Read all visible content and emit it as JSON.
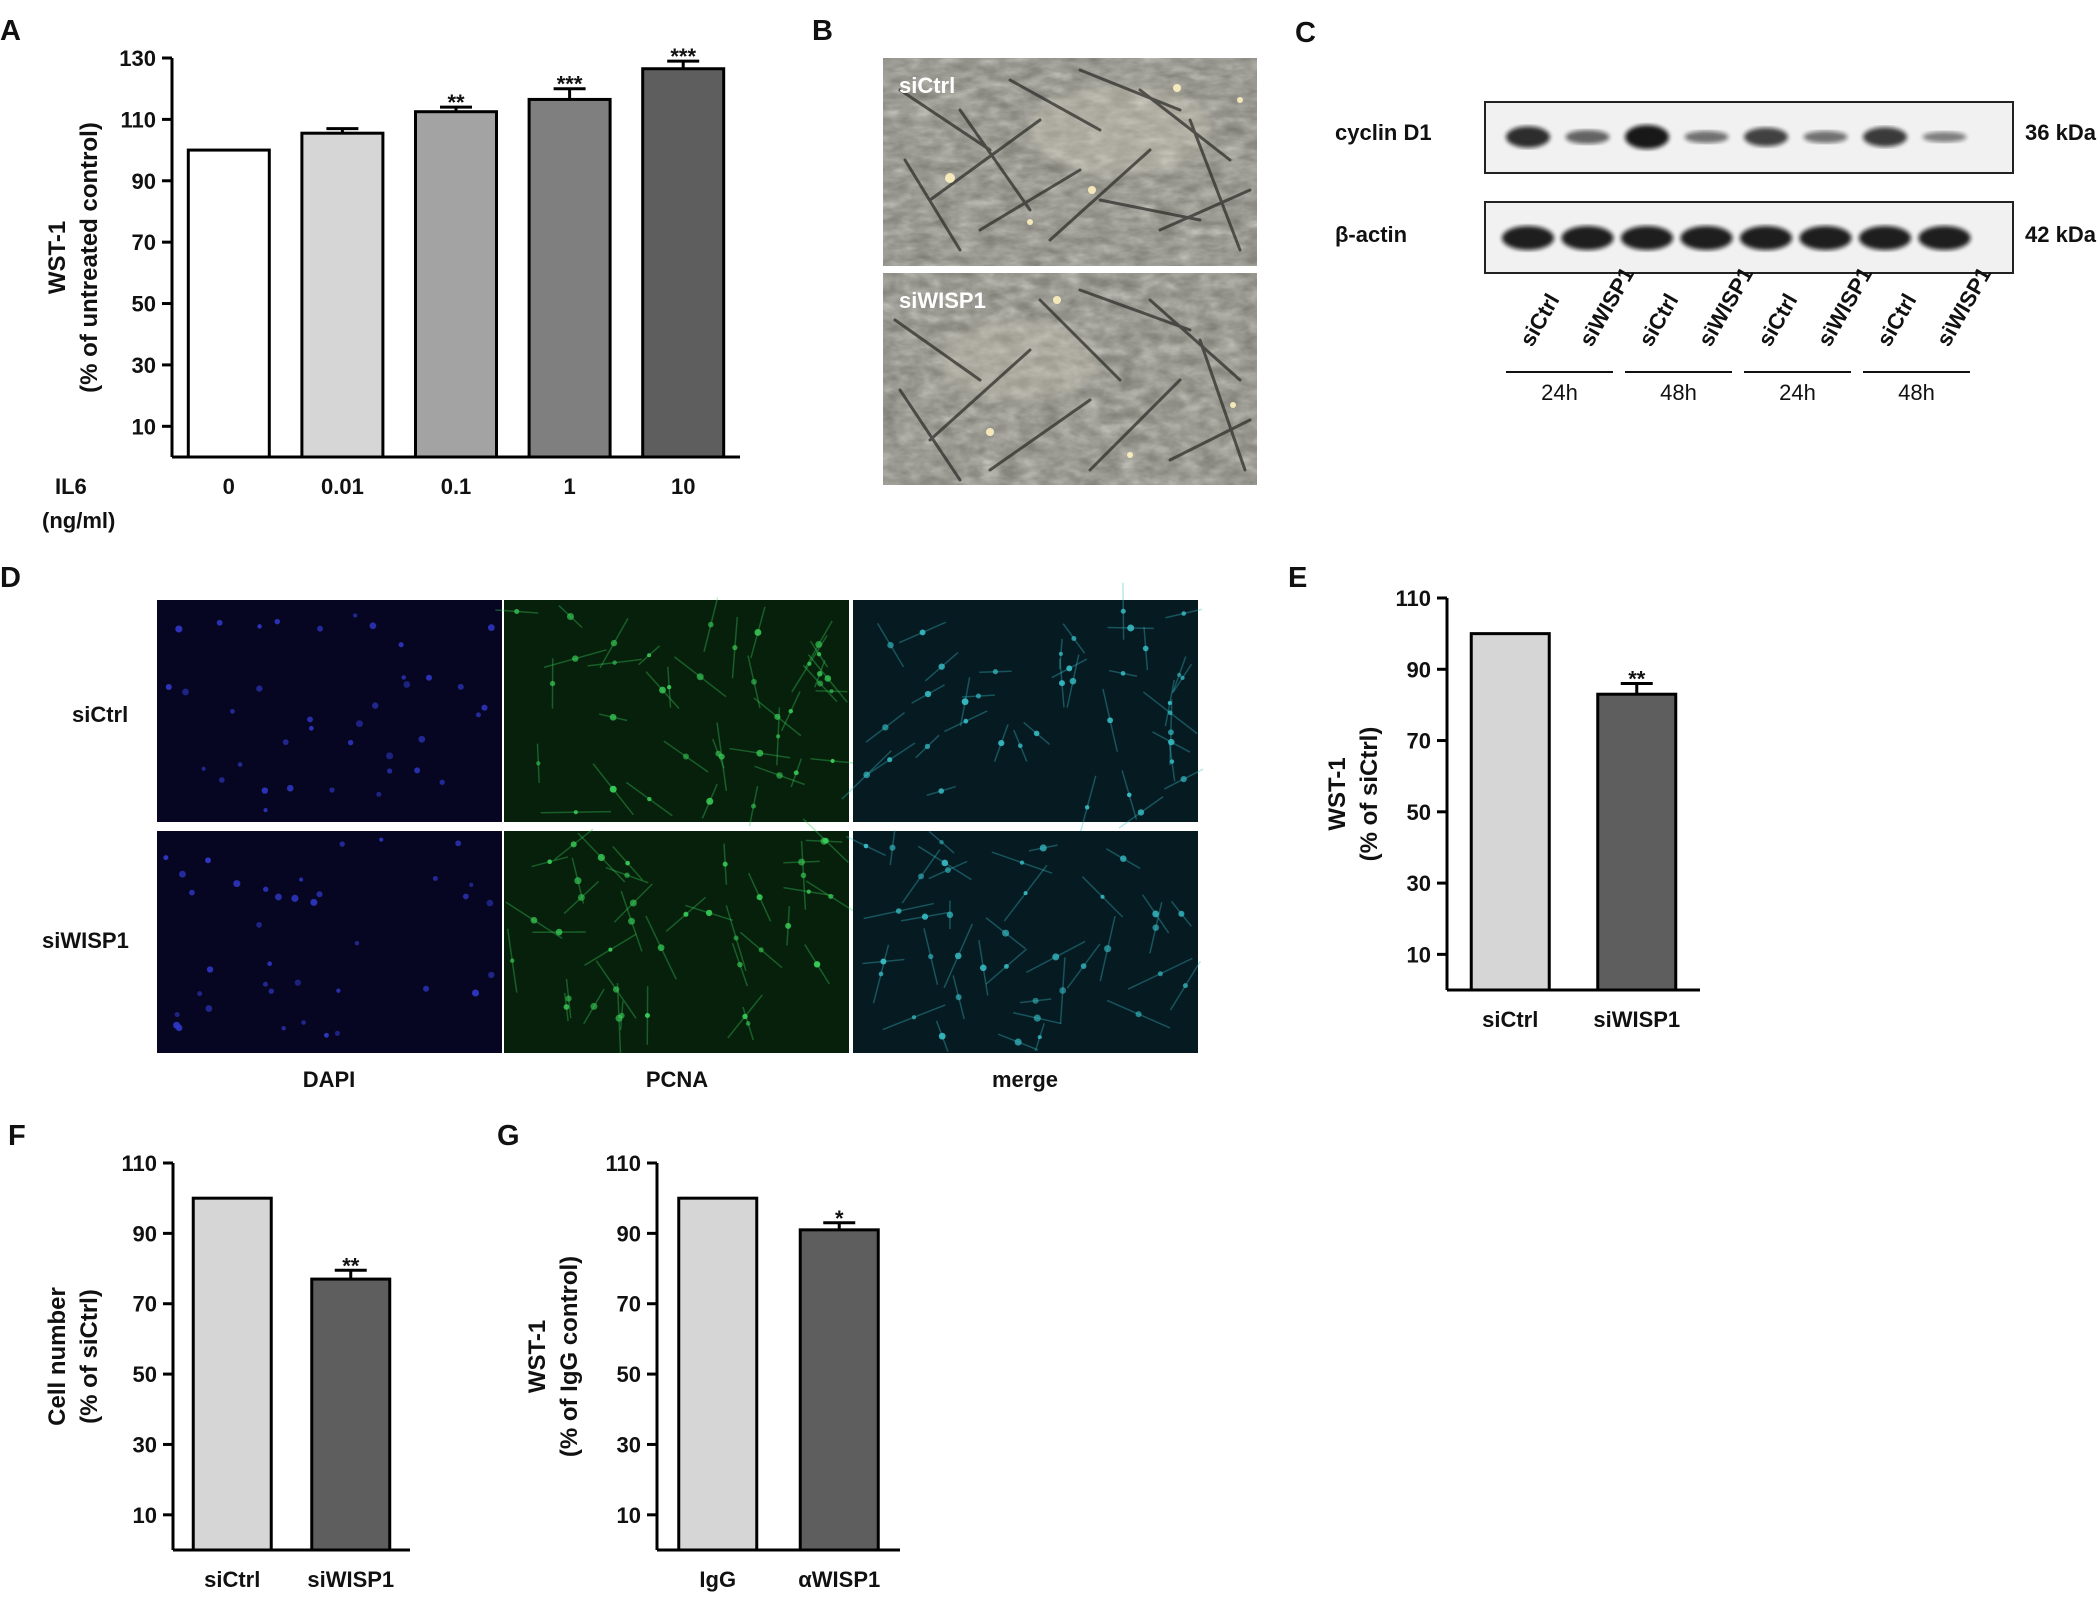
{
  "panels": {
    "A": {
      "letter": "A"
    },
    "B": {
      "letter": "B",
      "top_label": "siCtrl",
      "bottom_label": "siWISP1"
    },
    "C": {
      "letter": "C",
      "rows": [
        {
          "name": "cyclin D1",
          "size": "36 kDa"
        },
        {
          "name": "β-actin",
          "size": "42 kDa"
        }
      ],
      "lanes": [
        "siCtrl",
        "siWISP1",
        "siCtrl",
        "siWISP1",
        "siCtrl",
        "siWISP1",
        "siCtrl",
        "siWISP1"
      ],
      "times": [
        "24h",
        "48h",
        "24h",
        "48h"
      ]
    },
    "D": {
      "letter": "D",
      "row_labels": [
        "siCtrl",
        "siWISP1"
      ],
      "col_labels": [
        "DAPI",
        "PCNA",
        "merge"
      ]
    },
    "E": {
      "letter": "E"
    },
    "F": {
      "letter": "F"
    },
    "G": {
      "letter": "G"
    }
  },
  "chart_data": [
    {
      "id": "A",
      "type": "bar",
      "ylabel_line1": "WST-1",
      "ylabel_line2": "(% of untreated control)",
      "xlabel_line1": "IL6",
      "xlabel_line2": "(ng/ml)",
      "categories": [
        "0",
        "0.01",
        "0.1",
        "1",
        "10"
      ],
      "values": [
        100,
        105.5,
        112.5,
        116.5,
        126.5
      ],
      "errors": [
        0,
        1.5,
        1.5,
        3.5,
        2.5
      ],
      "significance": [
        "",
        "",
        "**",
        "***",
        "***"
      ],
      "colors": [
        "#ffffff",
        "#d6d6d6",
        "#a3a3a3",
        "#7f7f7f",
        "#5e5e5e"
      ],
      "yticks": [
        10,
        30,
        50,
        70,
        90,
        110,
        130
      ],
      "ylim": [
        0,
        130
      ]
    },
    {
      "id": "E",
      "type": "bar",
      "ylabel_line1": "WST-1",
      "ylabel_line2": "(% of siCtrl)",
      "categories": [
        "siCtrl",
        "siWISP1"
      ],
      "values": [
        100,
        83
      ],
      "errors": [
        0,
        3
      ],
      "significance": [
        "",
        "**"
      ],
      "colors": [
        "#d6d6d6",
        "#5e5e5e"
      ],
      "yticks": [
        10,
        30,
        50,
        70,
        90,
        110
      ],
      "ylim": [
        0,
        110
      ]
    },
    {
      "id": "F",
      "type": "bar",
      "ylabel_line1": "Cell number",
      "ylabel_line2": "(% of siCtrl)",
      "categories": [
        "siCtrl",
        "siWISP1"
      ],
      "values": [
        100,
        77
      ],
      "errors": [
        0,
        2.5
      ],
      "significance": [
        "",
        "**"
      ],
      "colors": [
        "#d6d6d6",
        "#5e5e5e"
      ],
      "yticks": [
        10,
        30,
        50,
        70,
        90,
        110
      ],
      "ylim": [
        0,
        110
      ]
    },
    {
      "id": "G",
      "type": "bar",
      "ylabel_line1": "WST-1",
      "ylabel_line2": "(% of IgG control)",
      "categories": [
        "IgG",
        "αWISP1"
      ],
      "values": [
        100,
        91
      ],
      "errors": [
        0,
        2
      ],
      "significance": [
        "",
        "*"
      ],
      "colors": [
        "#d6d6d6",
        "#5e5e5e"
      ],
      "yticks": [
        10,
        30,
        50,
        70,
        90,
        110
      ],
      "ylim": [
        0,
        110
      ]
    }
  ]
}
